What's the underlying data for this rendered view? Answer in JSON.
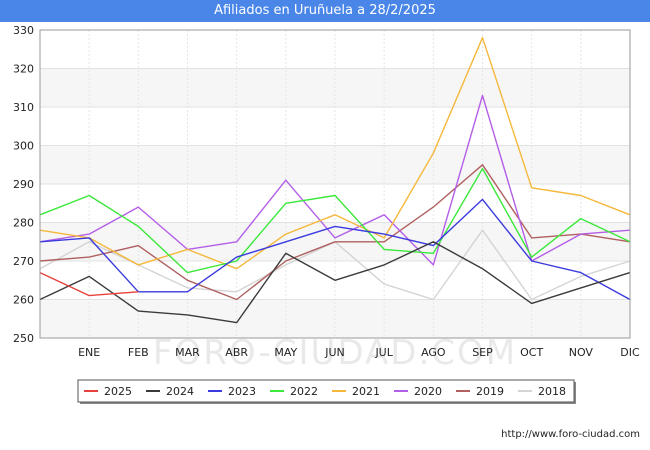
{
  "title": "Afiliados en Uruñuela a 28/2/2025",
  "source": "http://www.foro-ciudad.com",
  "watermark": "FORO-CIUDAD.COM",
  "chart_data": {
    "type": "line",
    "categories": [
      "",
      "ENE",
      "FEB",
      "MAR",
      "ABR",
      "MAY",
      "JUN",
      "JUL",
      "AGO",
      "SEP",
      "OCT",
      "NOV",
      "DIC"
    ],
    "ylim": [
      250,
      330
    ],
    "yticks": [
      250,
      260,
      270,
      280,
      290,
      300,
      310,
      320,
      330
    ],
    "grid": true,
    "legend_position": "bottom",
    "series": [
      {
        "name": "2025",
        "color": "#e8413b",
        "values": [
          267,
          261,
          262,
          null,
          null,
          null,
          null,
          null,
          null,
          null,
          null,
          null,
          null
        ]
      },
      {
        "name": "2024",
        "color": "#3b3b3b",
        "values": [
          260,
          266,
          257,
          256,
          254,
          272,
          265,
          269,
          275,
          268,
          259,
          263,
          267
        ]
      },
      {
        "name": "2023",
        "color": "#3b3bdf",
        "values": [
          275,
          276,
          262,
          262,
          271,
          275,
          279,
          277,
          274,
          286,
          270,
          267,
          260
        ]
      },
      {
        "name": "2022",
        "color": "#3be83b",
        "values": [
          282,
          287,
          279,
          267,
          270,
          285,
          287,
          273,
          272,
          294,
          271,
          281,
          275
        ]
      },
      {
        "name": "2021",
        "color": "#f5b83b",
        "values": [
          278,
          276,
          269,
          273,
          268,
          277,
          282,
          276,
          298,
          328,
          289,
          287,
          282
        ]
      },
      {
        "name": "2020",
        "color": "#b45ee8",
        "values": [
          275,
          277,
          284,
          273,
          275,
          291,
          276,
          282,
          269,
          313,
          270,
          277,
          278
        ]
      },
      {
        "name": "2019",
        "color": "#b06060",
        "values": [
          270,
          271,
          274,
          265,
          260,
          270,
          275,
          275,
          284,
          295,
          276,
          277,
          275
        ]
      },
      {
        "name": "2018",
        "color": "#d4d4d4",
        "values": [
          268,
          275,
          269,
          263,
          262,
          269,
          275,
          264,
          260,
          278,
          260,
          266,
          270
        ]
      }
    ]
  }
}
